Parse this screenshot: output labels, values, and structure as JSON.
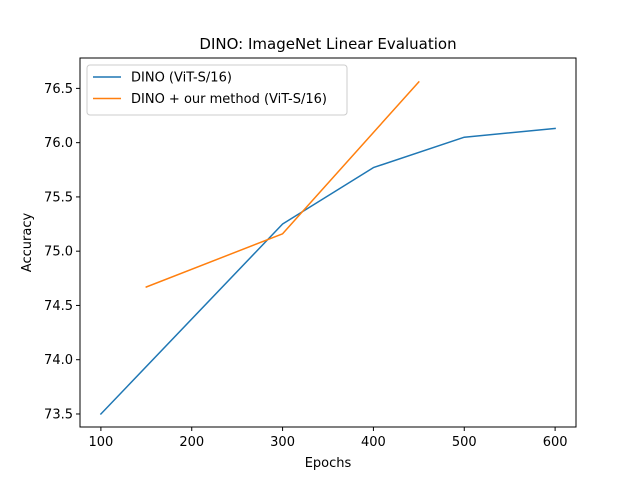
{
  "chart_data": {
    "type": "line",
    "title": "DINO: ImageNet Linear Evaluation",
    "xlabel": "Epochs",
    "ylabel": "Accuracy",
    "xlim": [
      77,
      623
    ],
    "ylim": [
      73.38,
      76.78
    ],
    "xticks": [
      100,
      200,
      300,
      400,
      500,
      600
    ],
    "yticks": [
      73.5,
      74.0,
      74.5,
      75.0,
      75.5,
      76.0,
      76.5
    ],
    "grid": false,
    "legend_position": "top-left",
    "series": [
      {
        "name": "DINO (ViT-S/16)",
        "color": "#1f77b4",
        "x": [
          100,
          300,
          400,
          500,
          600
        ],
        "y": [
          73.5,
          75.25,
          75.77,
          76.05,
          76.13
        ]
      },
      {
        "name": "DINO + our method (ViT-S/16)",
        "color": "#ff7f0e",
        "x": [
          150,
          300,
          450
        ],
        "y": [
          74.67,
          75.16,
          76.56
        ]
      }
    ]
  }
}
